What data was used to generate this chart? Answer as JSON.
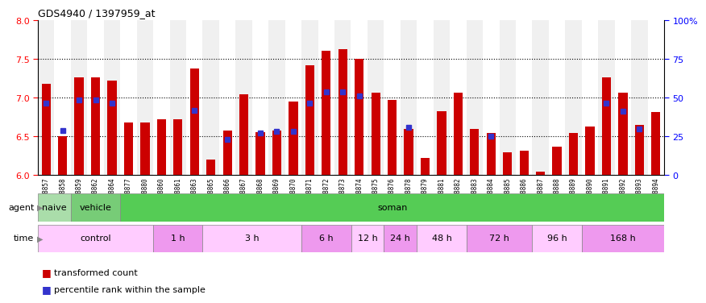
{
  "title": "GDS4940 / 1397959_at",
  "samples": [
    "GSM338857",
    "GSM338858",
    "GSM338859",
    "GSM338862",
    "GSM338864",
    "GSM338877",
    "GSM338880",
    "GSM338860",
    "GSM338861",
    "GSM338863",
    "GSM338865",
    "GSM338866",
    "GSM338867",
    "GSM338868",
    "GSM338869",
    "GSM338870",
    "GSM338871",
    "GSM338872",
    "GSM338873",
    "GSM338874",
    "GSM338875",
    "GSM338876",
    "GSM338878",
    "GSM338879",
    "GSM338881",
    "GSM338882",
    "GSM338883",
    "GSM338884",
    "GSM338885",
    "GSM338886",
    "GSM338887",
    "GSM338888",
    "GSM338889",
    "GSM338890",
    "GSM338891",
    "GSM338892",
    "GSM338893",
    "GSM338894"
  ],
  "bar_values": [
    7.18,
    6.5,
    7.27,
    7.27,
    7.22,
    6.68,
    6.68,
    6.72,
    6.72,
    7.38,
    6.2,
    6.58,
    7.05,
    6.56,
    6.58,
    6.95,
    7.42,
    7.61,
    7.63,
    7.5,
    7.07,
    6.97,
    6.6,
    6.22,
    6.83,
    7.07,
    6.6,
    6.55,
    6.3,
    6.32,
    6.05,
    6.37,
    6.55,
    6.63,
    7.27,
    7.07,
    6.65,
    6.82
  ],
  "dot_values": [
    6.93,
    6.58,
    6.97,
    6.97,
    6.93,
    null,
    null,
    null,
    null,
    6.84,
    null,
    6.46,
    null,
    6.55,
    6.57,
    6.57,
    6.93,
    7.08,
    7.08,
    7.03,
    null,
    null,
    6.62,
    null,
    null,
    null,
    null,
    6.5,
    null,
    null,
    null,
    null,
    null,
    null,
    6.93,
    6.83,
    6.6,
    null
  ],
  "ylim": [
    6.0,
    8.0
  ],
  "yticks": [
    6.0,
    6.5,
    7.0,
    7.5,
    8.0
  ],
  "right_yticks": [
    0,
    25,
    50,
    75,
    100
  ],
  "bar_color": "#cc0000",
  "dot_color": "#3333cc",
  "bar_bottom": 6.0,
  "agent_groups": [
    {
      "label": "naive",
      "start": 0,
      "end": 2,
      "color": "#aaddaa"
    },
    {
      "label": "vehicle",
      "start": 2,
      "end": 5,
      "color": "#77cc77"
    },
    {
      "label": "soman",
      "start": 5,
      "end": 38,
      "color": "#55cc55"
    }
  ],
  "time_groups": [
    {
      "label": "control",
      "start": 0,
      "end": 7,
      "color": "#ffccff"
    },
    {
      "label": "1 h",
      "start": 7,
      "end": 10,
      "color": "#ee99ee"
    },
    {
      "label": "3 h",
      "start": 10,
      "end": 16,
      "color": "#ffccff"
    },
    {
      "label": "6 h",
      "start": 16,
      "end": 19,
      "color": "#ee99ee"
    },
    {
      "label": "12 h",
      "start": 19,
      "end": 21,
      "color": "#ffccff"
    },
    {
      "label": "24 h",
      "start": 21,
      "end": 23,
      "color": "#ee99ee"
    },
    {
      "label": "48 h",
      "start": 23,
      "end": 26,
      "color": "#ffccff"
    },
    {
      "label": "72 h",
      "start": 26,
      "end": 30,
      "color": "#ee99ee"
    },
    {
      "label": "96 h",
      "start": 30,
      "end": 33,
      "color": "#ffccff"
    },
    {
      "label": "168 h",
      "start": 33,
      "end": 38,
      "color": "#ee99ee"
    }
  ],
  "legend_items": [
    {
      "label": "transformed count",
      "color": "#cc0000"
    },
    {
      "label": "percentile rank within the sample",
      "color": "#3333cc"
    }
  ],
  "bg_color": "#f0f0f0"
}
